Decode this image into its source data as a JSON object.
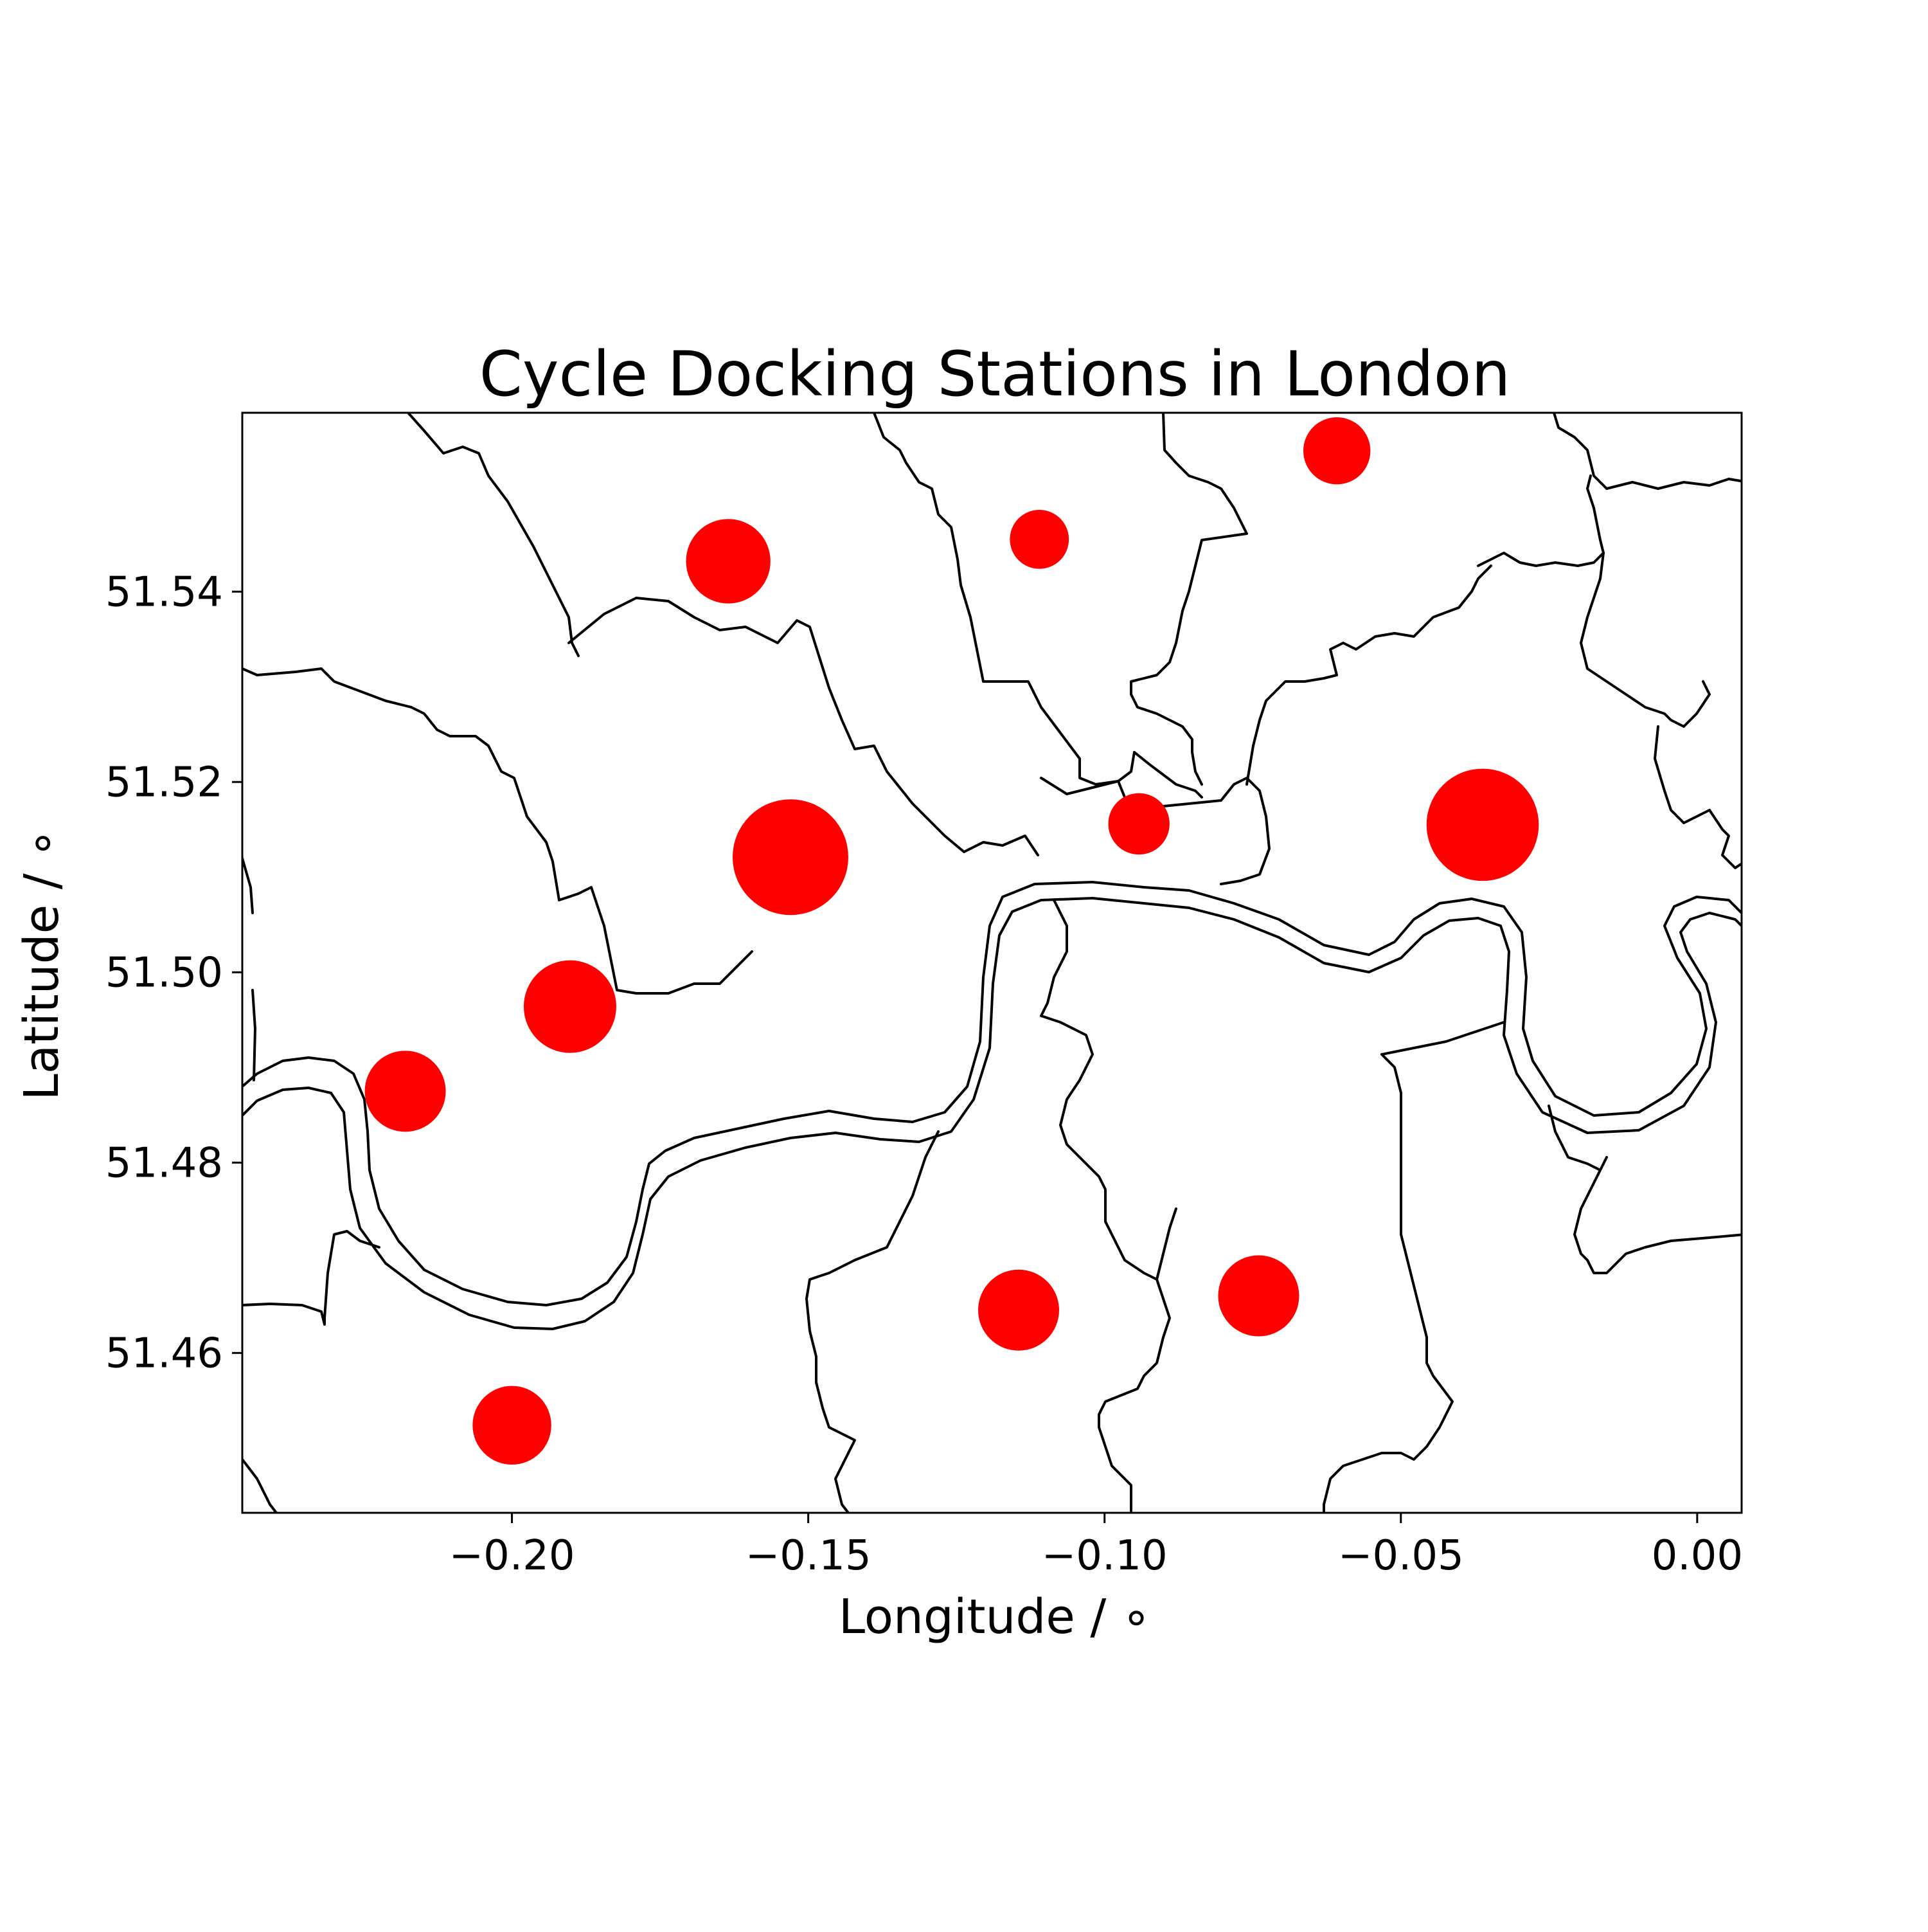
{
  "chart_data": {
    "type": "scatter",
    "title": "Cycle Docking Stations in London",
    "xlabel": "Longitude / ∘",
    "ylabel": "Latitude / ∘",
    "xlim": [
      -0.2455,
      0.0075
    ],
    "ylim": [
      51.4432,
      51.5588
    ],
    "xticks": [
      {
        "value": -0.2,
        "label": "−0.20"
      },
      {
        "value": -0.15,
        "label": "−0.15"
      },
      {
        "value": -0.1,
        "label": "−0.10"
      },
      {
        "value": -0.05,
        "label": "−0.05"
      },
      {
        "value": 0.0,
        "label": "0.00"
      }
    ],
    "yticks": [
      {
        "value": 51.46,
        "label": "51.46"
      },
      {
        "value": 51.48,
        "label": "51.48"
      },
      {
        "value": 51.5,
        "label": "51.50"
      },
      {
        "value": 51.52,
        "label": "51.52"
      },
      {
        "value": 51.54,
        "label": "51.54"
      }
    ],
    "grid": false,
    "marker_color": "#ff0000",
    "points": [
      {
        "x": -0.153,
        "y": 51.5121,
        "size": 1.0
      },
      {
        "x": -0.0362,
        "y": 51.5155,
        "size": 0.97
      },
      {
        "x": -0.1902,
        "y": 51.4964,
        "size": 0.8
      },
      {
        "x": -0.1635,
        "y": 51.5432,
        "size": 0.73
      },
      {
        "x": -0.218,
        "y": 51.4875,
        "size": 0.7
      },
      {
        "x": -0.074,
        "y": 51.466,
        "size": 0.7
      },
      {
        "x": -0.1145,
        "y": 51.4645,
        "size": 0.7
      },
      {
        "x": -0.2,
        "y": 51.4524,
        "size": 0.68
      },
      {
        "x": -0.0608,
        "y": 51.5548,
        "size": 0.58
      },
      {
        "x": -0.0942,
        "y": 51.5156,
        "size": 0.53
      },
      {
        "x": -0.111,
        "y": 51.5455,
        "size": 0.51
      }
    ]
  }
}
